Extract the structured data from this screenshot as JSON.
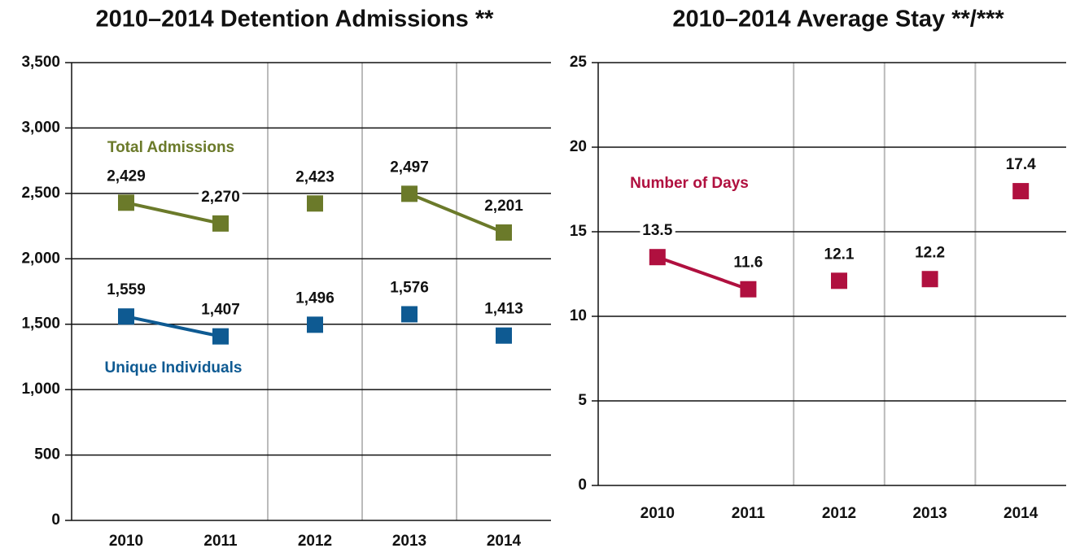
{
  "chart_data": [
    {
      "type": "line",
      "title": "2010–2014 Detention Admissions **",
      "categories": [
        "2010",
        "2011",
        "2012",
        "2013",
        "2014"
      ],
      "series": [
        {
          "name": "Total Admissions",
          "color": "#6b7a2a",
          "values": [
            2429,
            2270,
            2423,
            2497,
            2201
          ],
          "value_labels": [
            "2,429",
            "2,270",
            "2,423",
            "2,497",
            "2,201"
          ],
          "connected": [
            [
              0,
              1
            ],
            [
              3,
              4
            ]
          ]
        },
        {
          "name": "Unique Individuals",
          "color": "#0e5a92",
          "values": [
            1559,
            1407,
            1496,
            1576,
            1413
          ],
          "value_labels": [
            "1,559",
            "1,407",
            "1,496",
            "1,576",
            "1,413"
          ],
          "connected": [
            [
              0,
              1
            ]
          ]
        }
      ],
      "ylim": [
        0,
        3500
      ],
      "yticks": [
        0,
        500,
        {
          "value": 1000,
          "label": "1,000"
        },
        {
          "value": 1500,
          "label": "1,500"
        },
        {
          "value": 2000,
          "label": "2,000"
        },
        {
          "value": 2500,
          "label": "2,500"
        },
        {
          "value": 3000,
          "label": "3,000"
        },
        {
          "value": 3500,
          "label": "3,500"
        }
      ],
      "grid": true
    },
    {
      "type": "line",
      "title": "2010–2014 Average Stay **/***",
      "categories": [
        "2010",
        "2011",
        "2012",
        "2013",
        "2014"
      ],
      "series": [
        {
          "name": "Number of Days",
          "color": "#b0103f",
          "values": [
            13.5,
            11.6,
            12.1,
            12.2,
            17.4
          ],
          "connected": [
            [
              0,
              1
            ]
          ]
        }
      ],
      "ylim": [
        0,
        25
      ],
      "yticks": [
        0,
        5,
        10,
        15,
        20,
        25
      ],
      "grid": true
    }
  ]
}
